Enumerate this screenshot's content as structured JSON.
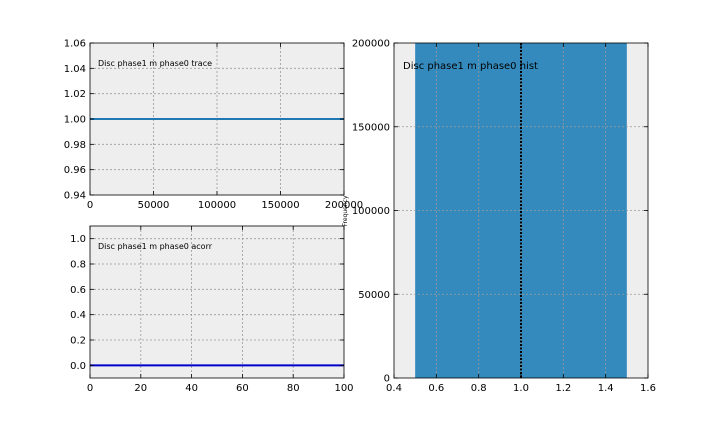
{
  "chart_data": [
    {
      "type": "line",
      "title": "Disc phase1 m phase0 trace",
      "xlim": [
        0,
        200000
      ],
      "ylim": [
        0.94,
        1.06
      ],
      "x_ticks": [
        0,
        50000,
        100000,
        150000,
        200000
      ],
      "y_ticks": [
        0.94,
        0.96,
        0.98,
        1.0,
        1.02,
        1.04,
        1.06
      ],
      "x_tick_labels": [
        "0",
        "50000",
        "100000",
        "150000",
        "200000"
      ],
      "y_tick_labels": [
        "0.94",
        "0.96",
        "0.98",
        "1.00",
        "1.02",
        "1.04",
        "1.06"
      ],
      "grid": true,
      "series": [
        {
          "x": [
            0,
            200000
          ],
          "y": [
            1.0,
            1.0
          ],
          "color": "#1f77b4"
        }
      ]
    },
    {
      "type": "line",
      "title": "Disc phase1 m phase0 acorr",
      "xlim": [
        0,
        100
      ],
      "ylim": [
        -0.1,
        1.1
      ],
      "x_ticks": [
        0,
        20,
        40,
        60,
        80,
        100
      ],
      "y_ticks": [
        0.0,
        0.2,
        0.4,
        0.6,
        0.8,
        1.0
      ],
      "x_tick_labels": [
        "0",
        "20",
        "40",
        "60",
        "80",
        "100"
      ],
      "y_tick_labels": [
        "0.0",
        "0.2",
        "0.4",
        "0.6",
        "0.8",
        "1.0"
      ],
      "grid": true,
      "series": [
        {
          "x": [
            0,
            100
          ],
          "y": [
            0.0,
            0.0
          ],
          "color": "#0000cc"
        }
      ]
    },
    {
      "type": "bar",
      "title": "Disc phase1 m phase0 hist",
      "ylabel": "Frequency",
      "xlim": [
        0.4,
        1.6
      ],
      "ylim": [
        0,
        200000
      ],
      "x_ticks": [
        0.4,
        0.6,
        0.8,
        1.0,
        1.2,
        1.4,
        1.6
      ],
      "y_ticks": [
        0,
        50000,
        100000,
        150000,
        200000
      ],
      "x_tick_labels": [
        "0.4",
        "0.6",
        "0.8",
        "1.0",
        "1.2",
        "1.4",
        "1.6"
      ],
      "y_tick_labels": [
        "0",
        "50000",
        "100000",
        "150000",
        "200000"
      ],
      "grid": true,
      "bars": [
        {
          "x0": 0.5,
          "x1": 1.5,
          "value": 200000
        }
      ],
      "bar_color": "#348abd",
      "vline": {
        "x": 1.0,
        "color": "#000000",
        "style": "dotted"
      }
    }
  ]
}
